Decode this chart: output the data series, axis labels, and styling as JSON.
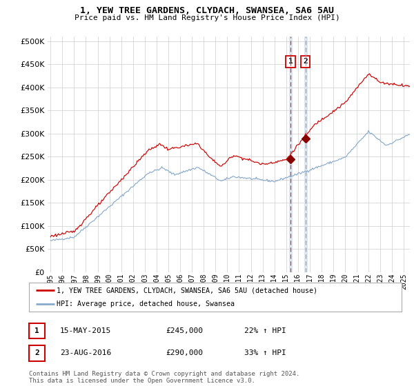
{
  "title": "1, YEW TREE GARDENS, CLYDACH, SWANSEA, SA6 5AU",
  "subtitle": "Price paid vs. HM Land Registry's House Price Index (HPI)",
  "legend_line1": "1, YEW TREE GARDENS, CLYDACH, SWANSEA, SA6 5AU (detached house)",
  "legend_line2": "HPI: Average price, detached house, Swansea",
  "footer": "Contains HM Land Registry data © Crown copyright and database right 2024.\nThis data is licensed under the Open Government Licence v3.0.",
  "sale1_date": "15-MAY-2015",
  "sale1_price": 245000,
  "sale1_hpi": "22%",
  "sale2_date": "23-AUG-2016",
  "sale2_price": 290000,
  "sale2_hpi": "33%",
  "sale1_label": "1",
  "sale2_label": "2",
  "sale1_year": 2015.37,
  "sale2_year": 2016.64,
  "ylim_min": 0,
  "ylim_max": 500000,
  "xlim_min": 1994.75,
  "xlim_max": 2025.5,
  "red_color": "#cc0000",
  "blue_color": "#88aacc",
  "grid_color": "#cccccc",
  "bg_color": "#ffffff",
  "sale_marker_color": "#880000",
  "vline1_color": "#cc3333",
  "vline2_color": "#9999bb",
  "vband_color": "#ccddf0"
}
